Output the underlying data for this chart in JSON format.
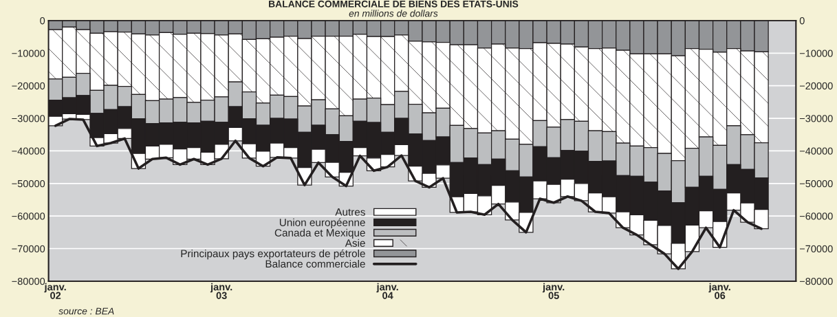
{
  "chart_data": {
    "type": "bar",
    "stacked": true,
    "title": "BALANCE COMMERCIALE DE BIENS DES ETATS-UNIS",
    "subtitle": "en millions de dollars",
    "annotations": [
      "source : BEA"
    ],
    "categories": [
      "janv.\n02",
      null,
      null,
      null,
      null,
      null,
      null,
      null,
      null,
      null,
      null,
      null,
      "janv.\n03",
      null,
      null,
      null,
      null,
      null,
      null,
      null,
      null,
      null,
      null,
      null,
      "janv.\n04",
      null,
      null,
      null,
      null,
      null,
      null,
      null,
      null,
      null,
      null,
      null,
      "janv.\n05",
      null,
      null,
      null,
      null,
      null,
      null,
      null,
      null,
      null,
      null,
      null,
      "janv.\n06",
      null,
      null,
      null
    ],
    "series": [
      {
        "name": "Principaux pays exportateurs de pétrole",
        "color": "#939598",
        "values": [
          -2800,
          -2000,
          -2800,
          -3900,
          -3400,
          -3500,
          -4100,
          -4400,
          -3700,
          -4200,
          -3900,
          -4000,
          -4400,
          -4100,
          -5800,
          -5600,
          -5100,
          -4800,
          -5500,
          -4800,
          -4800,
          -4800,
          -4200,
          -4900,
          -4900,
          -4400,
          -6300,
          -6500,
          -6700,
          -7400,
          -7400,
          -8400,
          -7200,
          -8400,
          -8600,
          -6800,
          -7000,
          -7200,
          -8100,
          -8600,
          -8400,
          -9100,
          -10200,
          -10200,
          -10200,
          -10800,
          -8600,
          -8800,
          -9700,
          -8600,
          -9300,
          -9600
        ]
      },
      {
        "name": "Asie",
        "color": "#ffffff",
        "values": [
          -15100,
          -15400,
          -13400,
          -17500,
          -16500,
          -16700,
          -18600,
          -20200,
          -20400,
          -19400,
          -21200,
          -20400,
          -19000,
          -14700,
          -16100,
          -19700,
          -17800,
          -18500,
          -20700,
          -19500,
          -22300,
          -24400,
          -19900,
          -18900,
          -20900,
          -17300,
          -19400,
          -21800,
          -20200,
          -24800,
          -25700,
          -26100,
          -26600,
          -28000,
          -29400,
          -23900,
          -25700,
          -23200,
          -22800,
          -25200,
          -25700,
          -28500,
          -28300,
          -28800,
          -30600,
          -32200,
          -30600,
          -26900,
          -28600,
          -23700,
          -25700,
          -27900
        ]
      },
      {
        "name": "Canada et Mexique",
        "color": "#bcbec0",
        "values": [
          -6500,
          -6300,
          -6800,
          -7100,
          -7400,
          -6200,
          -7400,
          -7000,
          -7300,
          -7600,
          -6300,
          -6500,
          -7800,
          -7600,
          -8200,
          -6800,
          -7100,
          -6900,
          -8100,
          -7800,
          -7900,
          -7900,
          -6800,
          -7500,
          -8500,
          -8300,
          -9100,
          -8500,
          -8800,
          -11400,
          -9100,
          -9700,
          -8700,
          -9700,
          -10000,
          -8000,
          -9400,
          -9500,
          -9200,
          -9400,
          -9000,
          -10000,
          -9300,
          -10600,
          -11500,
          -12900,
          -12000,
          -12100,
          -13500,
          -11900,
          -10700,
          -10800
        ]
      },
      {
        "name": "Union européenne",
        "color": "#231f20",
        "values": [
          -5000,
          -4900,
          -5800,
          -7400,
          -7400,
          -6700,
          -10700,
          -6900,
          -6600,
          -8200,
          -7600,
          -9500,
          -6800,
          -6400,
          -7700,
          -8000,
          -7600,
          -8800,
          -10800,
          -7400,
          -8500,
          -9500,
          -8100,
          -10900,
          -6800,
          -8100,
          -9900,
          -10100,
          -8600,
          -10500,
          -10900,
          -9600,
          -8100,
          -9600,
          -10900,
          -10500,
          -8200,
          -8800,
          -9900,
          -9700,
          -11000,
          -11100,
          -11800,
          -11700,
          -10600,
          -12500,
          -11600,
          -10600,
          -9900,
          -8700,
          -10300,
          -9700
        ]
      },
      {
        "name": "Autres",
        "color": "#ffffff",
        "values": [
          -2900,
          -1600,
          -1600,
          -2600,
          -2900,
          -3100,
          -4600,
          -4000,
          -4100,
          -4800,
          -3500,
          -3800,
          -4400,
          -4100,
          -4400,
          -4600,
          -4400,
          -3200,
          -5400,
          -4100,
          -4500,
          -4200,
          -2500,
          -3900,
          -3800,
          -3300,
          -4500,
          -4300,
          -4100,
          -4800,
          -5600,
          -5800,
          -5700,
          -5500,
          -6100,
          -5500,
          -5600,
          -5300,
          -5300,
          -5800,
          -5000,
          -4900,
          -6200,
          -7500,
          -8700,
          -7800,
          -8100,
          -5200,
          -7900,
          -5300,
          -5900,
          -5900
        ]
      },
      {
        "name": "Balance commerciale",
        "type": "line",
        "color": "#231f20",
        "values": [
          -32300,
          -30200,
          -30400,
          -38500,
          -37600,
          -36200,
          -45400,
          -42500,
          -42100,
          -44200,
          -42500,
          -44200,
          -42400,
          -36900,
          -42200,
          -44700,
          -42000,
          -42200,
          -50500,
          -43600,
          -48000,
          -50800,
          -41500,
          -46100,
          -44900,
          -41400,
          -49200,
          -51200,
          -48400,
          -58900,
          -58700,
          -59600,
          -56300,
          -61200,
          -65000,
          -54700,
          -55900,
          -54000,
          -55300,
          -58700,
          -59100,
          -63600,
          -65800,
          -68800,
          -71600,
          -76200,
          -70900,
          -63600,
          -69600,
          -58200,
          -61900,
          -63900
        ]
      }
    ],
    "ylim": [
      -80000,
      0
    ],
    "yticks": [
      0,
      {
        "value": -10000,
        "label": "−10000"
      },
      {
        "value": -20000,
        "label": "−20000"
      },
      {
        "value": -30000,
        "label": "−30000"
      },
      {
        "value": -40000,
        "label": "−40000"
      },
      {
        "value": -50000,
        "label": "−50000"
      },
      {
        "value": -60000,
        "label": "−60000"
      },
      {
        "value": -70000,
        "label": "−70000"
      },
      {
        "value": -80000,
        "label": "−80000"
      }
    ],
    "y2lim": [
      -80000,
      0
    ],
    "y2ticks": [
      0,
      {
        "value": -10000,
        "label": "−10000"
      },
      {
        "value": -20000,
        "label": "−20000"
      },
      {
        "value": -30000,
        "label": "−30000"
      },
      {
        "value": -40000,
        "label": "−40000"
      },
      {
        "value": -50000,
        "label": "−50000"
      },
      {
        "value": -60000,
        "label": "−60000"
      },
      {
        "value": -70000,
        "label": "−70000"
      },
      {
        "value": -80000,
        "label": "−80000"
      }
    ],
    "grid": "y",
    "legend": "bottom"
  }
}
